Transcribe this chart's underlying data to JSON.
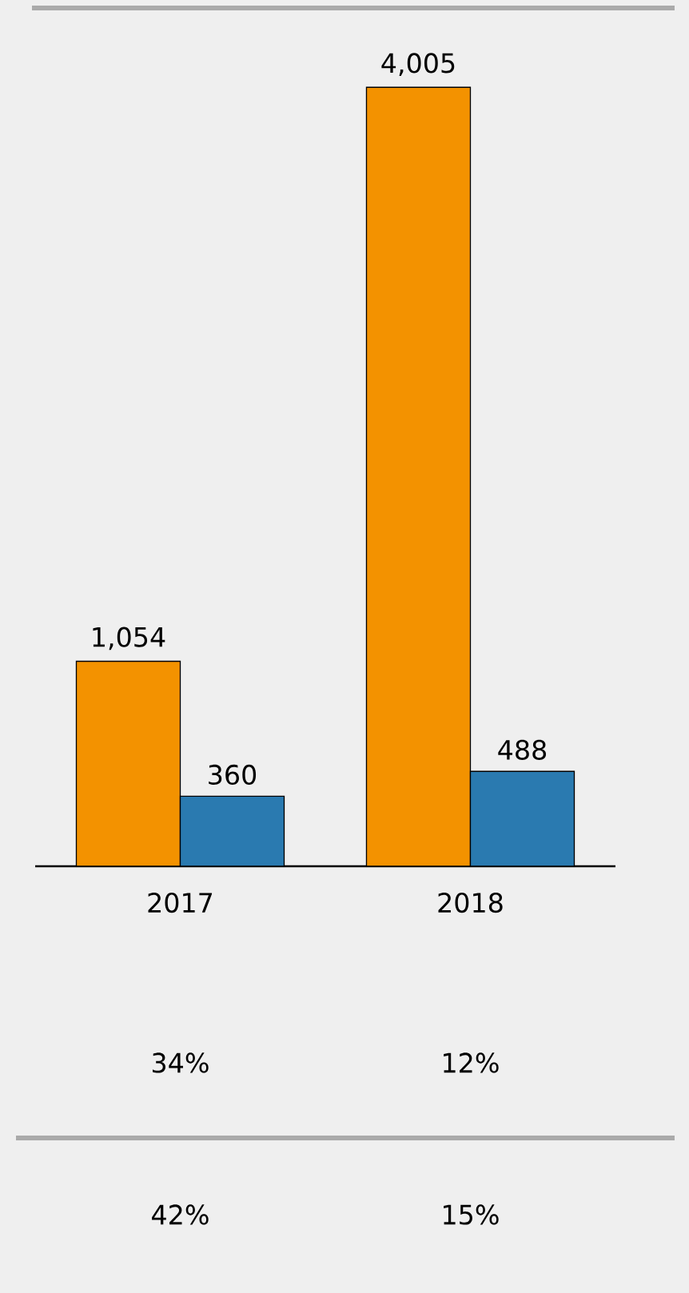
{
  "chart_data": {
    "type": "bar",
    "categories": [
      "2017",
      "2018"
    ],
    "series": [
      {
        "color": "#f39200",
        "values": [
          1054,
          4005
        ],
        "value_labels": [
          "1,054",
          "4,005"
        ]
      },
      {
        "color": "#2a7ab0",
        "values": [
          360,
          488
        ],
        "value_labels": [
          "360",
          "488"
        ]
      }
    ],
    "annotations": [
      "34%",
      "12%",
      "42%",
      "15%"
    ]
  }
}
